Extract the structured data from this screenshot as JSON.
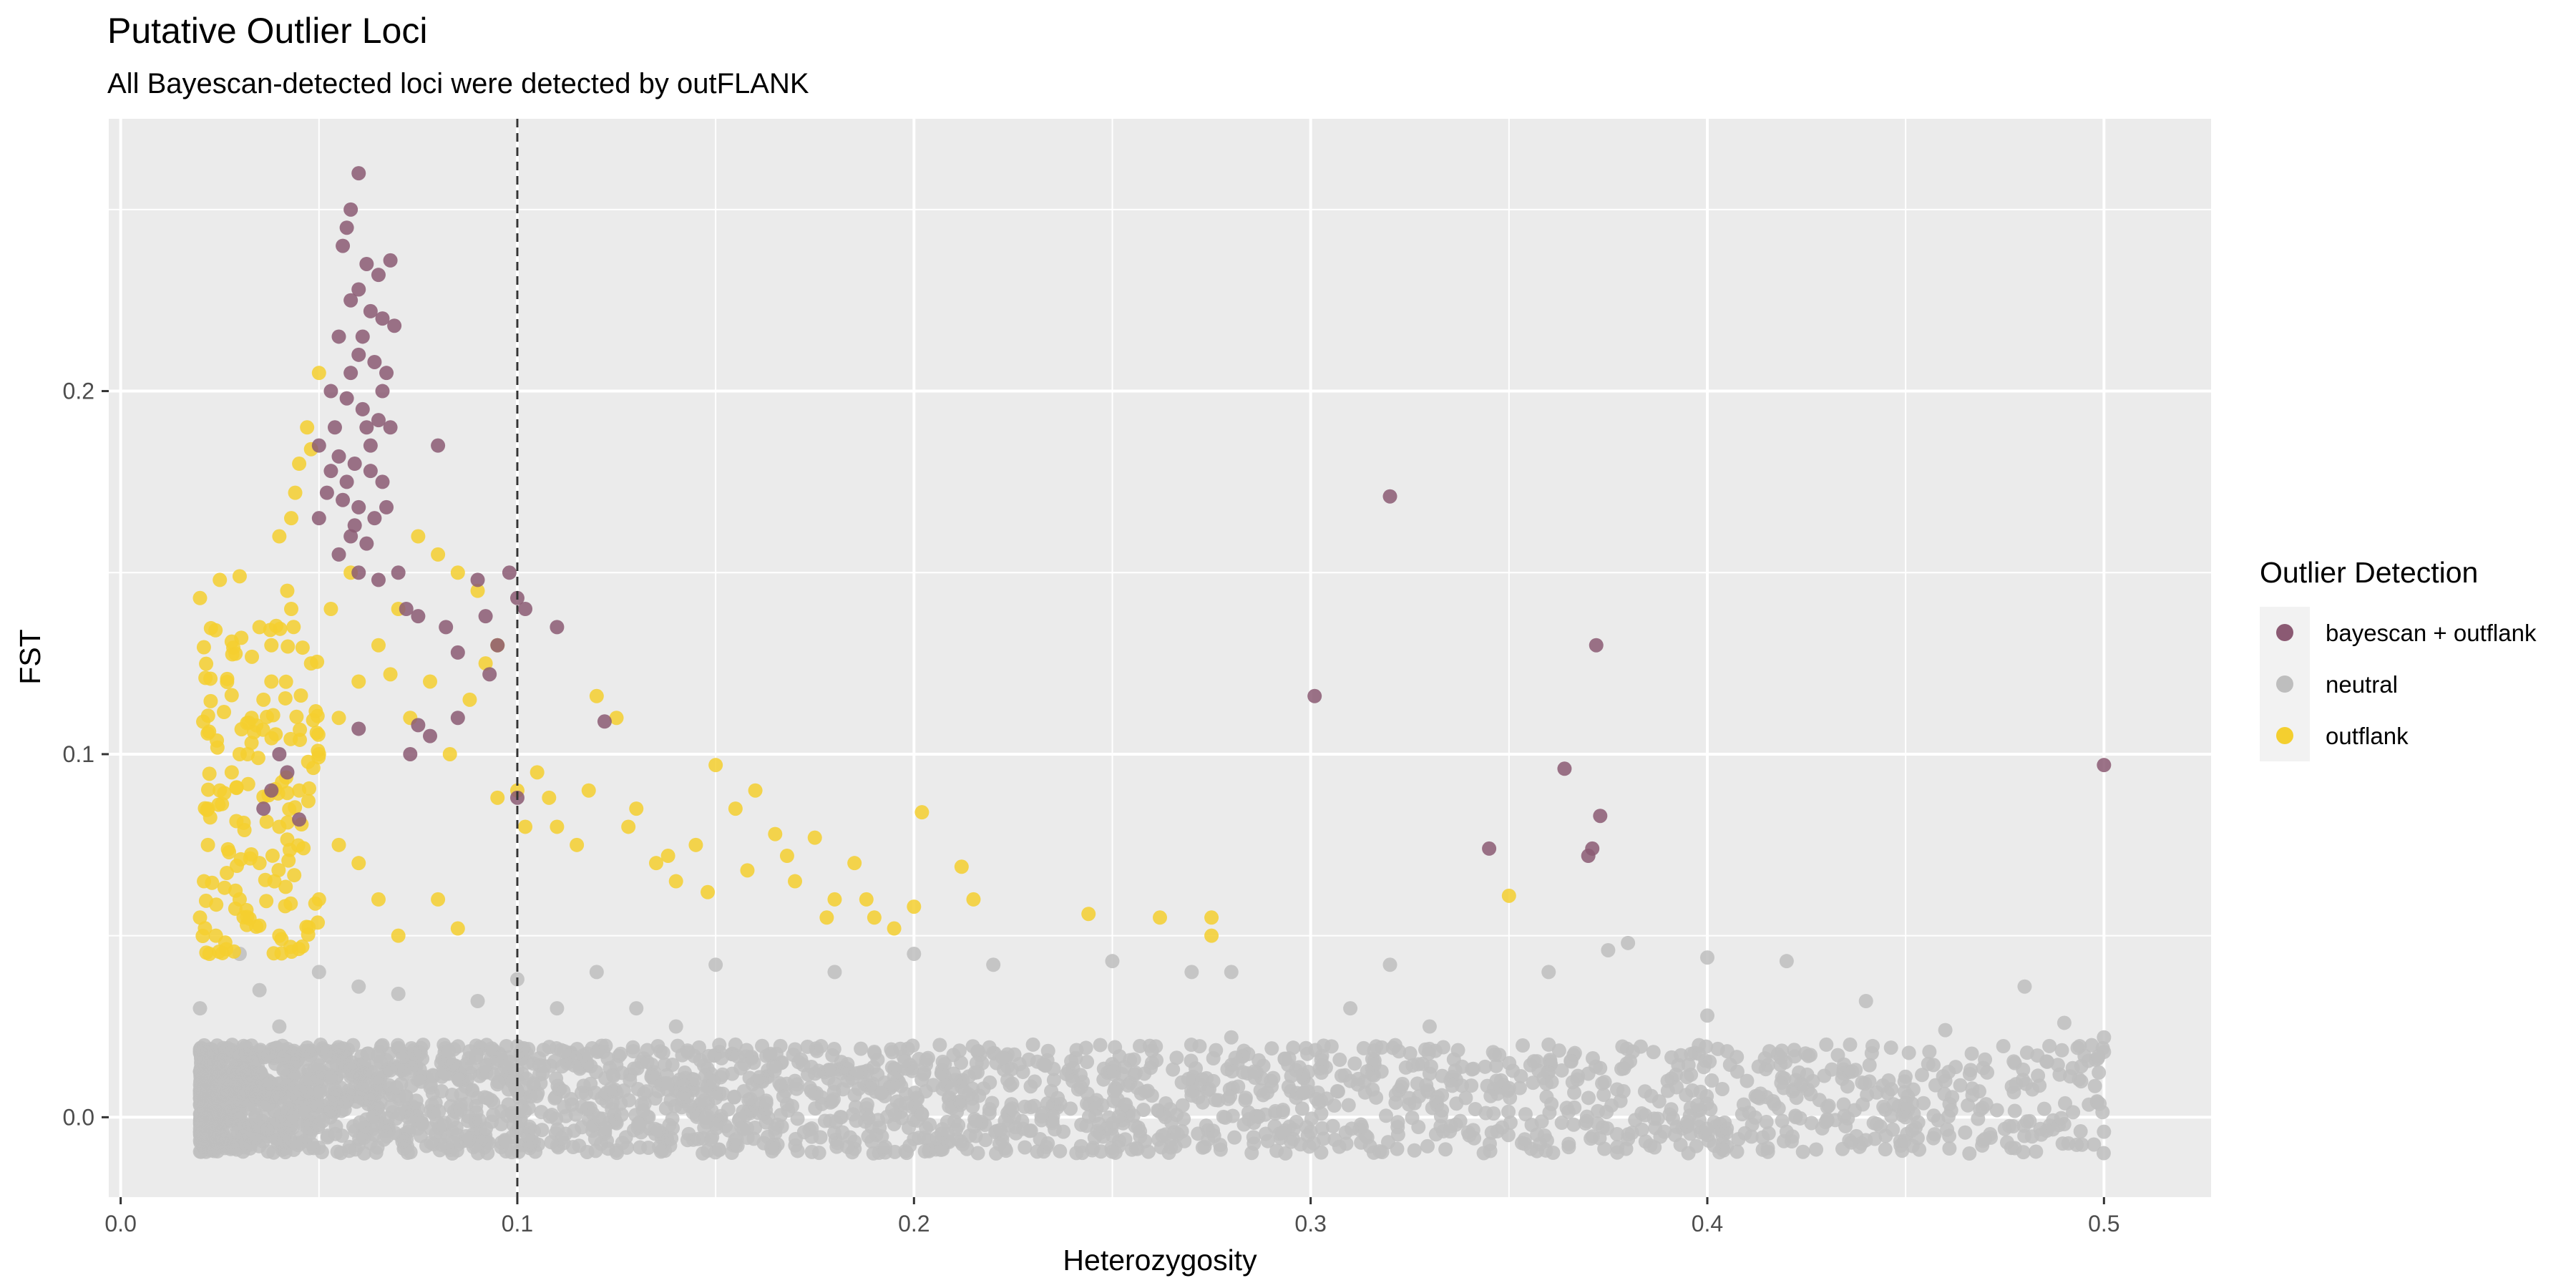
{
  "chart_data": {
    "type": "scatter",
    "title": "Putative Outlier Loci",
    "subtitle": "All Bayescan-detected loci were detected by outFLANK",
    "xlabel": "Heterozygosity",
    "ylabel": "FST",
    "xlim": [
      -0.003,
      0.527
    ],
    "ylim": [
      -0.022,
      0.275
    ],
    "x_ticks": [
      0.0,
      0.1,
      0.2,
      0.3,
      0.4,
      0.5
    ],
    "x_tick_labels": [
      "0.0",
      "0.1",
      "0.2",
      "0.3",
      "0.4",
      "0.5"
    ],
    "y_ticks": [
      0.0,
      0.1,
      0.2
    ],
    "y_tick_labels": [
      "0.0",
      "0.1",
      "0.2"
    ],
    "vline": {
      "x": 0.1,
      "style": "dashed"
    },
    "grid": true,
    "legend": {
      "title": "Outlier Detection",
      "position": "right"
    },
    "series": [
      {
        "name": "neutral",
        "color": "#bebebe",
        "points": [
          [
            0.03,
            0.045
          ],
          [
            0.035,
            0.035
          ],
          [
            0.05,
            0.04
          ],
          [
            0.1,
            0.038
          ],
          [
            0.12,
            0.04
          ],
          [
            0.15,
            0.042
          ],
          [
            0.18,
            0.04
          ],
          [
            0.2,
            0.045
          ],
          [
            0.22,
            0.042
          ],
          [
            0.25,
            0.043
          ],
          [
            0.27,
            0.04
          ],
          [
            0.28,
            0.04
          ],
          [
            0.32,
            0.042
          ],
          [
            0.36,
            0.04
          ],
          [
            0.375,
            0.046
          ],
          [
            0.38,
            0.048
          ],
          [
            0.4,
            0.044
          ],
          [
            0.42,
            0.043
          ],
          [
            0.44,
            0.032
          ],
          [
            0.46,
            0.024
          ],
          [
            0.48,
            0.036
          ],
          [
            0.49,
            0.026
          ],
          [
            0.5,
            0.022
          ],
          [
            0.5,
            0.018
          ],
          [
            0.46,
            0.01
          ],
          [
            0.43,
            0.02
          ],
          [
            0.41,
            0.01
          ],
          [
            0.39,
            0.01
          ],
          [
            0.37,
            0.012
          ],
          [
            0.35,
            0.008
          ],
          [
            0.33,
            0.012
          ],
          [
            0.31,
            0.01
          ],
          [
            0.29,
            0.01
          ],
          [
            0.27,
            0.006
          ],
          [
            0.26,
            0.015
          ],
          [
            0.24,
            0.01
          ],
          [
            0.23,
            0.02
          ],
          [
            0.21,
            0.012
          ],
          [
            0.19,
            0.018
          ],
          [
            0.17,
            0.01
          ],
          [
            0.155,
            0.02
          ],
          [
            0.14,
            0.025
          ],
          [
            0.13,
            0.03
          ],
          [
            0.11,
            0.03
          ],
          [
            0.09,
            0.032
          ],
          [
            0.07,
            0.034
          ],
          [
            0.06,
            0.036
          ],
          [
            0.04,
            0.025
          ],
          [
            0.02,
            0.03
          ],
          [
            0.3,
            -0.004
          ],
          [
            0.34,
            -0.005
          ],
          [
            0.38,
            -0.006
          ],
          [
            0.42,
            -0.004
          ],
          [
            0.47,
            -0.006
          ],
          [
            0.5,
            -0.004
          ],
          [
            0.25,
            -0.005
          ],
          [
            0.2,
            -0.006
          ],
          [
            0.45,
            0.0
          ],
          [
            0.33,
            0.025
          ],
          [
            0.36,
            0.02
          ],
          [
            0.28,
            0.022
          ],
          [
            0.31,
            0.03
          ],
          [
            0.4,
            0.028
          ]
        ]
      },
      {
        "name": "outflank",
        "color": "#f4cf2f",
        "points": [
          [
            0.02,
            0.143
          ],
          [
            0.025,
            0.148
          ],
          [
            0.03,
            0.149
          ],
          [
            0.028,
            0.131
          ],
          [
            0.035,
            0.135
          ],
          [
            0.04,
            0.16
          ],
          [
            0.043,
            0.165
          ],
          [
            0.045,
            0.18
          ],
          [
            0.048,
            0.184
          ],
          [
            0.05,
            0.205
          ],
          [
            0.047,
            0.19
          ],
          [
            0.044,
            0.172
          ],
          [
            0.042,
            0.145
          ],
          [
            0.038,
            0.12
          ],
          [
            0.036,
            0.115
          ],
          [
            0.033,
            0.11
          ],
          [
            0.03,
            0.1
          ],
          [
            0.028,
            0.095
          ],
          [
            0.025,
            0.09
          ],
          [
            0.022,
            0.085
          ],
          [
            0.022,
            0.075
          ],
          [
            0.021,
            0.065
          ],
          [
            0.02,
            0.055
          ],
          [
            0.024,
            0.05
          ],
          [
            0.03,
            0.06
          ],
          [
            0.035,
            0.07
          ],
          [
            0.04,
            0.08
          ],
          [
            0.045,
            0.09
          ],
          [
            0.05,
            0.1
          ],
          [
            0.055,
            0.11
          ],
          [
            0.06,
            0.12
          ],
          [
            0.065,
            0.13
          ],
          [
            0.07,
            0.14
          ],
          [
            0.075,
            0.16
          ],
          [
            0.08,
            0.155
          ],
          [
            0.085,
            0.15
          ],
          [
            0.09,
            0.145
          ],
          [
            0.095,
            0.13
          ],
          [
            0.1,
            0.09
          ],
          [
            0.105,
            0.095
          ],
          [
            0.11,
            0.08
          ],
          [
            0.115,
            0.075
          ],
          [
            0.12,
            0.116
          ],
          [
            0.125,
            0.11
          ],
          [
            0.13,
            0.085
          ],
          [
            0.135,
            0.07
          ],
          [
            0.14,
            0.065
          ],
          [
            0.145,
            0.075
          ],
          [
            0.15,
            0.097
          ],
          [
            0.155,
            0.085
          ],
          [
            0.16,
            0.09
          ],
          [
            0.165,
            0.078
          ],
          [
            0.17,
            0.065
          ],
          [
            0.175,
            0.077
          ],
          [
            0.18,
            0.06
          ],
          [
            0.185,
            0.07
          ],
          [
            0.19,
            0.055
          ],
          [
            0.2,
            0.058
          ],
          [
            0.202,
            0.084
          ],
          [
            0.212,
            0.069
          ],
          [
            0.215,
            0.06
          ],
          [
            0.244,
            0.056
          ],
          [
            0.262,
            0.055
          ],
          [
            0.275,
            0.055
          ],
          [
            0.275,
            0.05
          ],
          [
            0.35,
            0.061
          ],
          [
            0.06,
            0.07
          ],
          [
            0.065,
            0.06
          ],
          [
            0.07,
            0.05
          ],
          [
            0.08,
            0.06
          ],
          [
            0.085,
            0.052
          ],
          [
            0.095,
            0.088
          ],
          [
            0.05,
            0.06
          ],
          [
            0.055,
            0.075
          ],
          [
            0.04,
            0.05
          ],
          [
            0.032,
            0.1
          ],
          [
            0.038,
            0.13
          ],
          [
            0.043,
            0.14
          ],
          [
            0.048,
            0.125
          ],
          [
            0.053,
            0.14
          ],
          [
            0.058,
            0.15
          ],
          [
            0.068,
            0.122
          ],
          [
            0.073,
            0.11
          ],
          [
            0.078,
            0.12
          ],
          [
            0.083,
            0.1
          ],
          [
            0.088,
            0.115
          ],
          [
            0.092,
            0.125
          ],
          [
            0.102,
            0.08
          ],
          [
            0.108,
            0.088
          ],
          [
            0.118,
            0.09
          ],
          [
            0.128,
            0.08
          ],
          [
            0.138,
            0.072
          ],
          [
            0.148,
            0.062
          ],
          [
            0.158,
            0.068
          ],
          [
            0.168,
            0.072
          ],
          [
            0.178,
            0.055
          ],
          [
            0.188,
            0.06
          ],
          [
            0.195,
            0.052
          ]
        ]
      },
      {
        "name": "bayescan + outflank",
        "color": "#8b5a73",
        "points": [
          [
            0.06,
            0.26
          ],
          [
            0.058,
            0.25
          ],
          [
            0.057,
            0.245
          ],
          [
            0.056,
            0.24
          ],
          [
            0.062,
            0.235
          ],
          [
            0.065,
            0.232
          ],
          [
            0.068,
            0.236
          ],
          [
            0.06,
            0.228
          ],
          [
            0.058,
            0.225
          ],
          [
            0.063,
            0.222
          ],
          [
            0.066,
            0.22
          ],
          [
            0.069,
            0.218
          ],
          [
            0.055,
            0.215
          ],
          [
            0.06,
            0.21
          ],
          [
            0.064,
            0.208
          ],
          [
            0.067,
            0.205
          ],
          [
            0.053,
            0.2
          ],
          [
            0.057,
            0.198
          ],
          [
            0.061,
            0.195
          ],
          [
            0.065,
            0.192
          ],
          [
            0.068,
            0.19
          ],
          [
            0.05,
            0.185
          ],
          [
            0.055,
            0.182
          ],
          [
            0.059,
            0.18
          ],
          [
            0.063,
            0.178
          ],
          [
            0.066,
            0.175
          ],
          [
            0.052,
            0.172
          ],
          [
            0.056,
            0.17
          ],
          [
            0.06,
            0.168
          ],
          [
            0.064,
            0.165
          ],
          [
            0.058,
            0.16
          ],
          [
            0.062,
            0.158
          ],
          [
            0.055,
            0.155
          ],
          [
            0.06,
            0.15
          ],
          [
            0.065,
            0.148
          ],
          [
            0.07,
            0.15
          ],
          [
            0.072,
            0.14
          ],
          [
            0.075,
            0.138
          ],
          [
            0.08,
            0.185
          ],
          [
            0.082,
            0.135
          ],
          [
            0.085,
            0.128
          ],
          [
            0.09,
            0.148
          ],
          [
            0.092,
            0.138
          ],
          [
            0.095,
            0.13
          ],
          [
            0.098,
            0.15
          ],
          [
            0.1,
            0.143
          ],
          [
            0.102,
            0.14
          ],
          [
            0.11,
            0.135
          ],
          [
            0.073,
            0.1
          ],
          [
            0.075,
            0.108
          ],
          [
            0.078,
            0.105
          ],
          [
            0.085,
            0.11
          ],
          [
            0.093,
            0.122
          ],
          [
            0.1,
            0.088
          ],
          [
            0.04,
            0.1
          ],
          [
            0.042,
            0.095
          ],
          [
            0.038,
            0.09
          ],
          [
            0.036,
            0.085
          ],
          [
            0.045,
            0.082
          ],
          [
            0.06,
            0.107
          ],
          [
            0.122,
            0.109
          ],
          [
            0.062,
            0.19
          ],
          [
            0.058,
            0.205
          ],
          [
            0.054,
            0.19
          ],
          [
            0.066,
            0.2
          ],
          [
            0.061,
            0.215
          ],
          [
            0.057,
            0.175
          ],
          [
            0.063,
            0.185
          ],
          [
            0.067,
            0.168
          ],
          [
            0.059,
            0.163
          ],
          [
            0.053,
            0.178
          ],
          [
            0.05,
            0.165
          ],
          [
            0.301,
            0.116
          ],
          [
            0.32,
            0.171
          ],
          [
            0.345,
            0.074
          ],
          [
            0.364,
            0.096
          ],
          [
            0.37,
            0.072
          ],
          [
            0.371,
            0.074
          ],
          [
            0.372,
            0.13
          ],
          [
            0.373,
            0.083
          ],
          [
            0.5,
            0.097
          ]
        ]
      }
    ],
    "dense_cluster": {
      "series": "neutral",
      "x_range": [
        0.02,
        0.5
      ],
      "y_range": [
        -0.01,
        0.02
      ],
      "count": 2600,
      "x_distribution": "heavier near 0.02-0.12, sparse toward 0.5"
    },
    "dense_cluster_outflank": {
      "series": "outflank",
      "x_range": [
        0.02,
        0.05
      ],
      "y_range": [
        0.045,
        0.14
      ],
      "count": 140
    }
  }
}
